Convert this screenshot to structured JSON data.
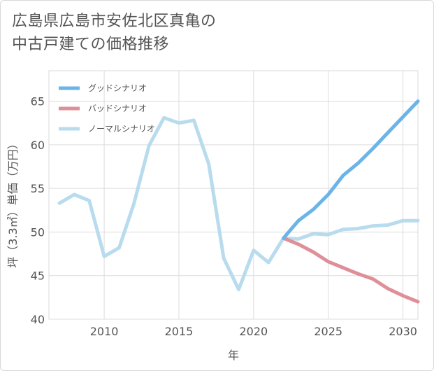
{
  "page": {
    "title_line1": "広島県広島市安佐北区真亀の",
    "title_line2": "中古戸建ての価格推移"
  },
  "chart_data": {
    "type": "line",
    "xlabel": "年",
    "ylabel": "坪（3.3㎡）単価（万円）",
    "xlim": [
      2006.3,
      2031
    ],
    "ylim": [
      40,
      68.5
    ],
    "xticks": [
      2010,
      2015,
      2020,
      2025,
      2030
    ],
    "yticks": [
      40,
      45,
      50,
      55,
      60,
      65
    ],
    "legend_position": "top-left",
    "series": [
      {
        "name": "グッドシナリオ",
        "color": "#6ab4e8",
        "x": [
          2022,
          2023,
          2024,
          2025,
          2026,
          2027,
          2028,
          2029,
          2030,
          2031
        ],
        "y": [
          49.3,
          51.3,
          52.6,
          54.3,
          56.5,
          57.9,
          59.6,
          61.4,
          63.2,
          65.0
        ]
      },
      {
        "name": "バッドシナリオ",
        "color": "#df8f98",
        "x": [
          2022,
          2023,
          2024,
          2025,
          2026,
          2027,
          2028,
          2029,
          2030,
          2031
        ],
        "y": [
          49.3,
          48.6,
          47.7,
          46.6,
          45.9,
          45.2,
          44.6,
          43.5,
          42.7,
          42.0
        ]
      },
      {
        "name": "ノーマルシナリオ",
        "color": "#b8dcee",
        "x": [
          2007,
          2008,
          2009,
          2010,
          2011,
          2012,
          2013,
          2014,
          2015,
          2016,
          2017,
          2018,
          2019,
          2020,
          2021,
          2022,
          2023,
          2024,
          2025,
          2026,
          2027,
          2028,
          2029,
          2030,
          2031
        ],
        "y": [
          53.3,
          54.3,
          53.6,
          47.2,
          48.2,
          53.3,
          59.9,
          63.1,
          62.5,
          62.8,
          57.8,
          47.0,
          43.4,
          47.9,
          46.5,
          49.3,
          49.2,
          49.8,
          49.7,
          50.3,
          50.4,
          50.7,
          50.8,
          51.3,
          51.3
        ]
      }
    ]
  }
}
